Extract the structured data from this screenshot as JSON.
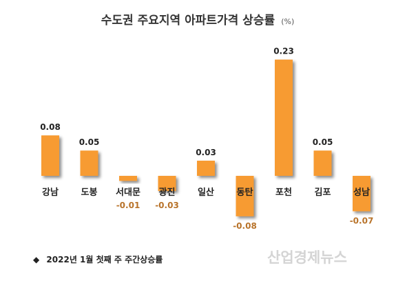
{
  "chart_data": {
    "type": "bar",
    "title": "수도권 주요지역 아파트가격 상승률",
    "unit": "(%)",
    "categories": [
      "강남",
      "도봉",
      "서대문",
      "광진",
      "일산",
      "동탄",
      "포천",
      "김포",
      "성남"
    ],
    "values": [
      0.08,
      0.05,
      -0.01,
      -0.03,
      0.03,
      -0.08,
      0.23,
      0.05,
      -0.07
    ],
    "value_labels": [
      "0.08",
      "0.05",
      "-0.01",
      "-0.03",
      "0.03",
      "-0.08",
      "0.23",
      "0.05",
      "-0.07"
    ],
    "ylim": [
      -0.08,
      0.23
    ],
    "grid": false,
    "legend": "none",
    "bar_color": "#f79b33",
    "negative_label_color": "#b8732a"
  },
  "footnote": {
    "bullet": "◆",
    "text": "2022년 1월 첫째 주 주간상승률"
  },
  "watermark": "산업경제뉴스"
}
